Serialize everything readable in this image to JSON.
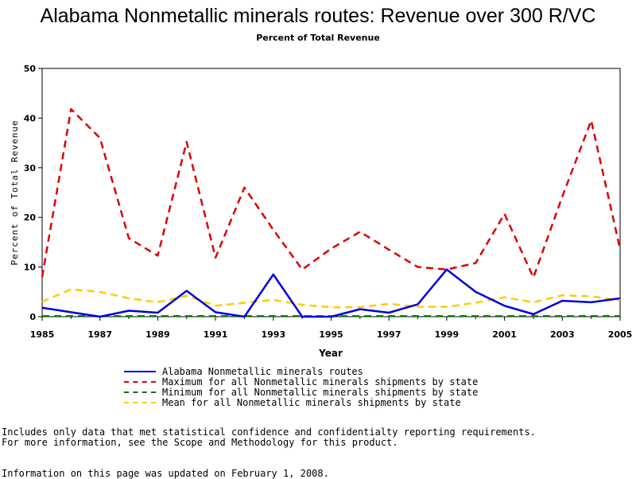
{
  "chart_data": {
    "type": "line",
    "title": "Alabama Nonmetallic minerals routes: Revenue over 300 R/VC",
    "subtitle": "Percent of Total Revenue",
    "xlabel": "Year",
    "ylabel": "Percent of Total Revenue",
    "xlim": [
      1985,
      2005
    ],
    "ylim": [
      0,
      50
    ],
    "x_ticks": [
      "1985",
      "1987",
      "1989",
      "1991",
      "1993",
      "1995",
      "1997",
      "1999",
      "2001",
      "2003",
      "2005"
    ],
    "y_ticks": [
      "0",
      "10",
      "20",
      "30",
      "40",
      "50"
    ],
    "x": [
      1985,
      1986,
      1987,
      1988,
      1989,
      1990,
      1991,
      1992,
      1993,
      1994,
      1995,
      1996,
      1997,
      1998,
      1999,
      2000,
      2001,
      2002,
      2003,
      2004,
      2005
    ],
    "series": [
      {
        "name": "Alabama Nonmetallic minerals routes",
        "color": "#0000dd",
        "dash": "solid",
        "values": [
          1.8,
          0.9,
          0.0,
          1.2,
          0.8,
          5.2,
          0.9,
          0.0,
          8.5,
          0.0,
          0.0,
          1.5,
          0.8,
          2.5,
          9.5,
          5.0,
          2.2,
          0.5,
          3.2,
          2.9,
          3.7
        ]
      },
      {
        "name": "Maximum for all Nonmetallic minerals shipments by state",
        "color": "#dd0000",
        "dash": "dashed",
        "values": [
          8.0,
          41.8,
          36.0,
          15.8,
          12.3,
          35.2,
          11.9,
          26.0,
          17.5,
          9.5,
          13.7,
          17.1,
          13.5,
          10.0,
          9.5,
          10.8,
          20.7,
          7.9,
          24.2,
          39.5,
          13.6
        ]
      },
      {
        "name": "Minimum for all Nonmetallic minerals shipments by state",
        "color": "#007700",
        "dash": "dashed",
        "values": [
          0.1,
          0.1,
          0.1,
          0.1,
          0.1,
          0.1,
          0.1,
          0.1,
          0.1,
          0.1,
          0.1,
          0.1,
          0.1,
          0.1,
          0.1,
          0.1,
          0.1,
          0.1,
          0.1,
          0.1,
          0.1
        ]
      },
      {
        "name": "Mean for all Nonmetallic minerals shipments by state",
        "color": "#ffcc00",
        "dash": "dashed",
        "values": [
          3.0,
          5.5,
          5.0,
          3.7,
          2.9,
          4.2,
          2.2,
          2.8,
          3.4,
          2.4,
          1.9,
          1.9,
          2.6,
          2.0,
          2.0,
          2.8,
          3.9,
          2.9,
          4.3,
          4.1,
          3.3
        ]
      }
    ]
  },
  "footnotes": {
    "line1": "Includes only data that met statistical confidence and confidentialty reporting requirements.",
    "line2": "For more information, see the Scope and Methodology for this product.",
    "updated": "Information on this page was updated on February 1, 2008."
  }
}
